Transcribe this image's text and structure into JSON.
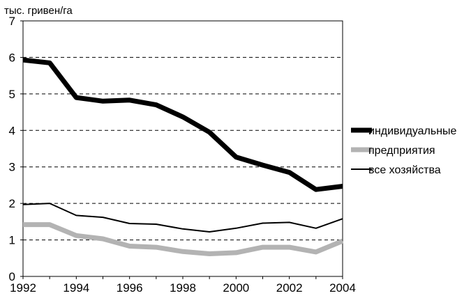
{
  "chart_data": {
    "type": "line",
    "ylabel": "тыс. гривен/га",
    "x": [
      1992,
      1993,
      1994,
      1995,
      1996,
      1997,
      1998,
      1999,
      2000,
      2001,
      2002,
      2003,
      2004
    ],
    "xticks": [
      "1992",
      "1994",
      "1996",
      "1998",
      "2000",
      "2002",
      "2004"
    ],
    "yticks": [
      "0",
      "1",
      "2",
      "3",
      "4",
      "5",
      "6",
      "7"
    ],
    "xlim": [
      1992,
      2004
    ],
    "ylim": [
      0,
      7
    ],
    "grid": "horizontal dashed",
    "legend_position": "right",
    "series": [
      {
        "name": "индивидуальные",
        "color": "#000000",
        "style": "thick",
        "values": [
          5.93,
          5.85,
          4.9,
          4.8,
          4.83,
          4.7,
          4.37,
          3.95,
          3.27,
          3.05,
          2.85,
          2.38,
          2.47
        ]
      },
      {
        "name": "предприятия",
        "color": "#b3b3b3",
        "style": "thick",
        "values": [
          1.42,
          1.42,
          1.12,
          1.03,
          0.83,
          0.8,
          0.68,
          0.62,
          0.65,
          0.8,
          0.8,
          0.67,
          0.97
        ]
      },
      {
        "name": "все хозяйства",
        "color": "#000000",
        "style": "thin",
        "values": [
          1.97,
          2.0,
          1.67,
          1.62,
          1.45,
          1.43,
          1.3,
          1.22,
          1.32,
          1.46,
          1.48,
          1.32,
          1.58
        ]
      }
    ]
  }
}
